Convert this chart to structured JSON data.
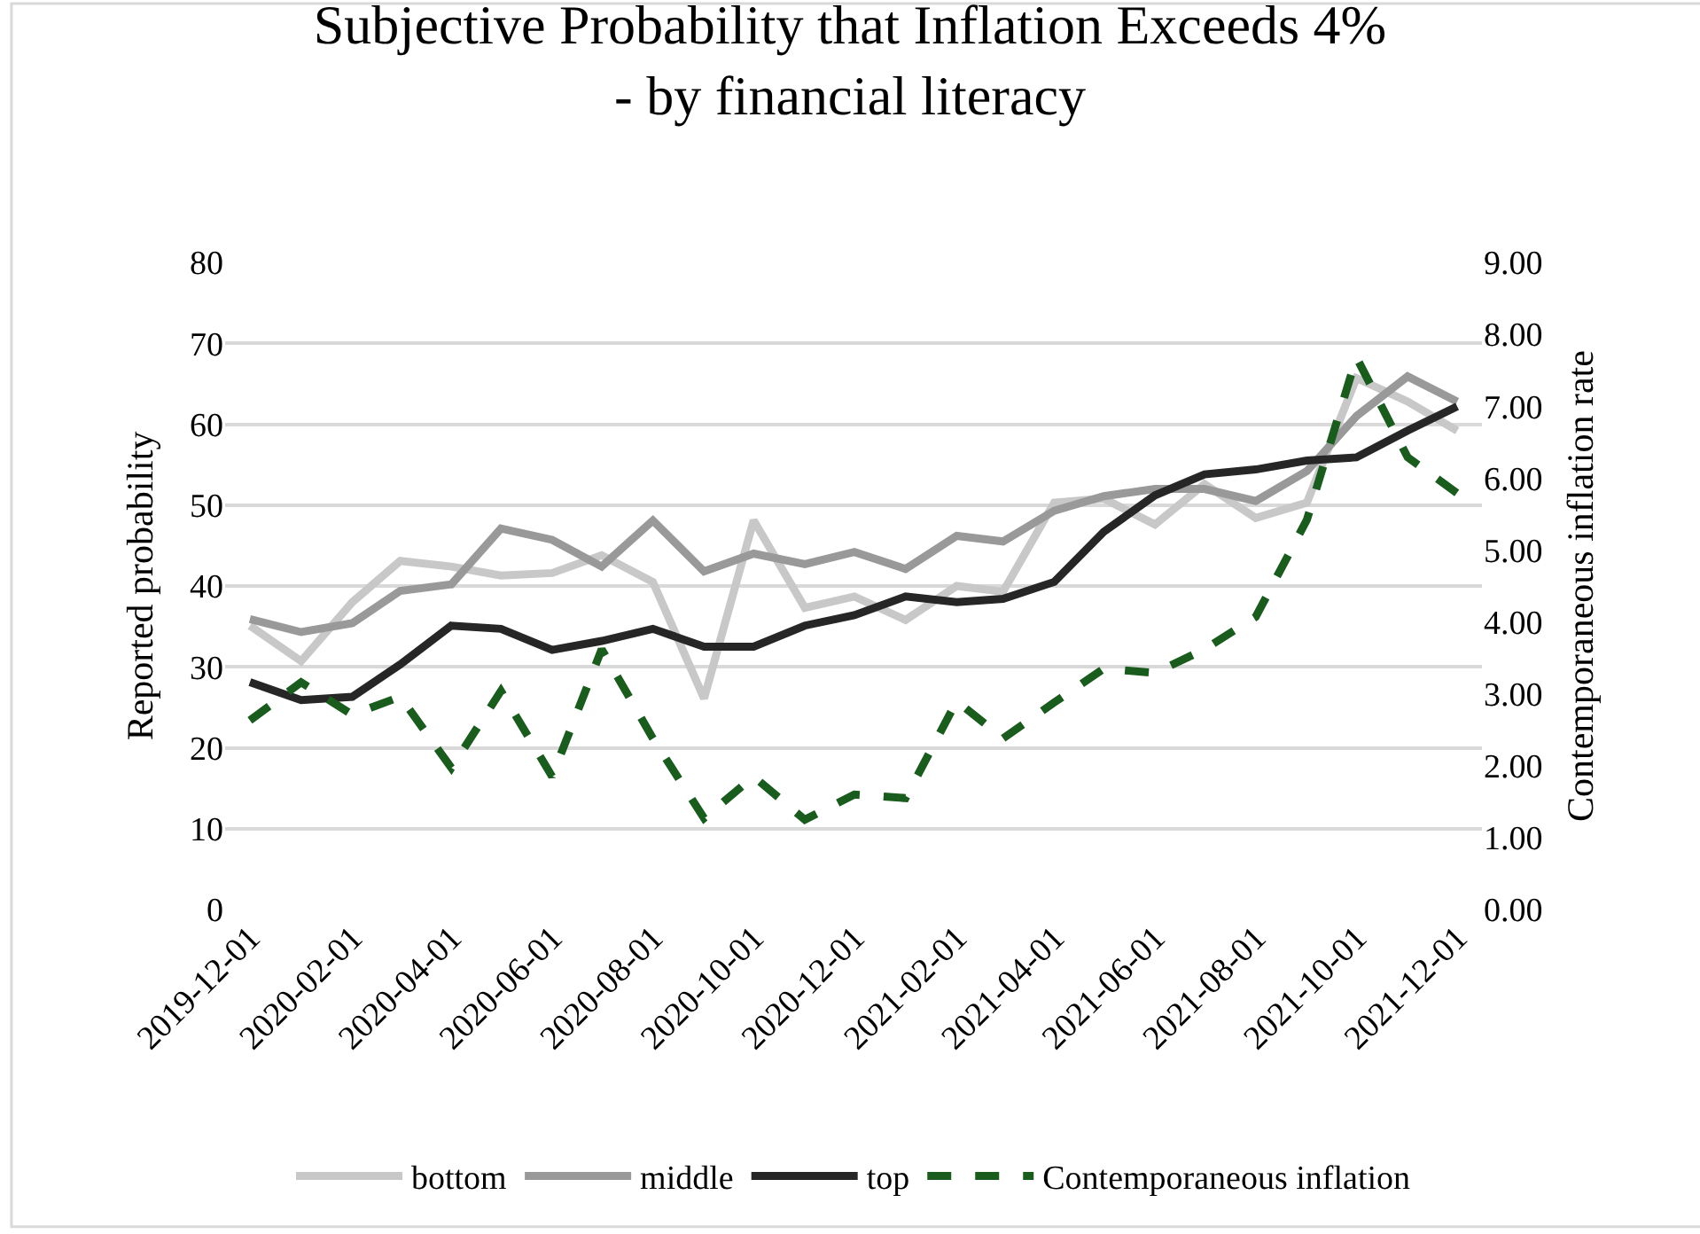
{
  "chart_data": {
    "type": "line",
    "title": "Subjective Probability that Inflation Exceeds 4%\n- by financial literacy",
    "ylabel": "Reported probability",
    "y2label": "Contemporaneous inflation rate",
    "x": [
      "2019-12-01",
      "2020-01-01",
      "2020-02-01",
      "2020-03-01",
      "2020-04-01",
      "2020-05-01",
      "2020-06-01",
      "2020-07-01",
      "2020-08-01",
      "2020-09-01",
      "2020-10-01",
      "2020-11-01",
      "2020-12-01",
      "2021-01-01",
      "2021-02-01",
      "2021-03-01",
      "2021-04-01",
      "2021-05-01",
      "2021-06-01",
      "2021-07-01",
      "2021-08-01",
      "2021-09-01",
      "2021-10-01",
      "2021-11-01",
      "2021-12-01"
    ],
    "series": [
      {
        "name": "bottom",
        "color": "#c8c8c8",
        "values": [
          35.1,
          30.7,
          38.0,
          43.1,
          42.4,
          41.3,
          41.6,
          43.8,
          40.5,
          26.1,
          48.1,
          37.3,
          38.7,
          35.8,
          40.0,
          39.3,
          50.3,
          50.8,
          47.6,
          52.6,
          48.4,
          50.3,
          65.7,
          62.8,
          59.2
        ]
      },
      {
        "name": "middle",
        "color": "#999999",
        "values": [
          35.9,
          34.3,
          35.4,
          39.4,
          40.2,
          47.1,
          45.7,
          42.4,
          48.1,
          41.8,
          44.0,
          42.7,
          44.2,
          42.1,
          46.2,
          45.5,
          49.3,
          51.1,
          52.0,
          52.0,
          50.5,
          54.2,
          61.0,
          65.9,
          62.8
        ]
      },
      {
        "name": "top",
        "color": "#262626",
        "values": [
          28.1,
          25.9,
          26.3,
          30.3,
          35.1,
          34.7,
          32.1,
          33.2,
          34.7,
          32.5,
          32.5,
          35.1,
          36.4,
          38.7,
          38.0,
          38.4,
          40.5,
          46.7,
          51.2,
          53.8,
          54.4,
          55.5,
          55.9,
          59.2,
          62.2
        ]
      },
      {
        "name": "Contemporaneous inflation",
        "color": "#1a5c1e",
        "axis": "y2",
        "line_style": "dashed",
        "values": [
          2.63,
          3.16,
          2.71,
          2.96,
          1.97,
          3.04,
          1.85,
          3.62,
          2.38,
          1.27,
          1.85,
          1.25,
          1.6,
          1.55,
          2.9,
          2.38,
          2.88,
          3.35,
          3.29,
          3.62,
          4.07,
          5.42,
          7.68,
          6.29,
          5.79
        ]
      }
    ],
    "xlim": [
      "2019-11-16",
      "2021-12-16"
    ],
    "xticks": [
      {
        "value": "2019-12-01",
        "label": "2019-12-01"
      },
      {
        "value": "2020-02-01",
        "label": "2020-02-01"
      },
      {
        "value": "2020-04-01",
        "label": "2020-04-01"
      },
      {
        "value": "2020-06-01",
        "label": "2020-06-01"
      },
      {
        "value": "2020-08-01",
        "label": "2020-08-01"
      },
      {
        "value": "2020-10-01",
        "label": "2020-10-01"
      },
      {
        "value": "2020-12-01",
        "label": "2020-12-01"
      },
      {
        "value": "2021-02-01",
        "label": "2021-02-01"
      },
      {
        "value": "2021-04-01",
        "label": "2021-04-01"
      },
      {
        "value": "2021-06-01",
        "label": "2021-06-01"
      },
      {
        "value": "2021-08-01",
        "label": "2021-08-01"
      },
      {
        "value": "2021-10-01",
        "label": "2021-10-01"
      },
      {
        "value": "2021-12-01",
        "label": "2021-12-01"
      }
    ],
    "ylim": [
      0,
      80
    ],
    "yticks": [
      0,
      10,
      20,
      30,
      40,
      50,
      60,
      70,
      80
    ],
    "y2lim": [
      0,
      9
    ],
    "y2ticks": [
      {
        "value": 0,
        "label": "0.00"
      },
      {
        "value": 1,
        "label": "1.00"
      },
      {
        "value": 2,
        "label": "2.00"
      },
      {
        "value": 3,
        "label": "3.00"
      },
      {
        "value": 4,
        "label": "4.00"
      },
      {
        "value": 5,
        "label": "5.00"
      },
      {
        "value": 6,
        "label": "6.00"
      },
      {
        "value": 7,
        "label": "7.00"
      },
      {
        "value": 8,
        "label": "8.00"
      },
      {
        "value": 9,
        "label": "9.00"
      }
    ],
    "grid": "y",
    "legend": "bottom",
    "marker": "none"
  }
}
